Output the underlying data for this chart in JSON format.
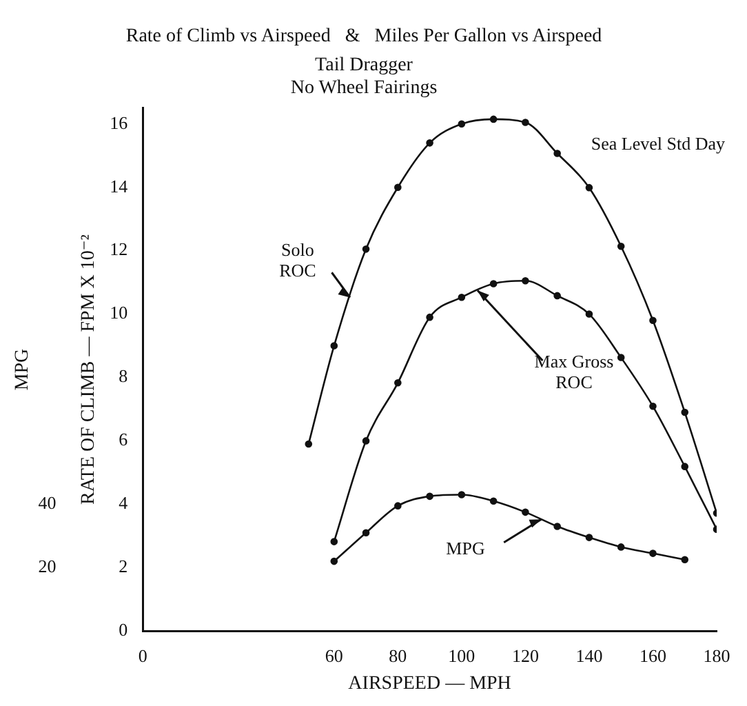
{
  "chart_data": {
    "type": "line",
    "title": "Rate of Climb vs Airspeed   &   Miles Per Gallon vs Airspeed",
    "subtitle": "Tail Dragger\nNo Wheel Fairings",
    "xlabel": "AIRSPEED — MPH",
    "ylabel": "RATE OF CLIMB — FPM X 10⁻²",
    "y2label": "MPG",
    "xlim": [
      0,
      180
    ],
    "xticks": [
      0,
      60,
      80,
      100,
      120,
      140,
      160,
      180
    ],
    "ylim": [
      0,
      16.5
    ],
    "yticks": [
      0,
      2,
      4,
      6,
      8,
      10,
      12,
      14,
      16
    ],
    "y2lim": [
      0,
      165
    ],
    "y2ticks": [
      20,
      40
    ],
    "grid": false,
    "legend": false,
    "marker": "circle",
    "line_style": "solid",
    "series": [
      {
        "name": "Solo ROC",
        "color": "#111111",
        "x": [
          52,
          60,
          70,
          80,
          90,
          100,
          110,
          120,
          130,
          140,
          150,
          160,
          170,
          180
        ],
        "values": [
          5.9,
          9.0,
          12.05,
          14.0,
          15.4,
          16.0,
          16.15,
          16.05,
          15.07,
          13.99,
          12.14,
          9.8,
          6.9,
          3.72
        ]
      },
      {
        "name": "Max Gross ROC",
        "color": "#111111",
        "x": [
          60,
          70,
          80,
          90,
          100,
          110,
          120,
          130,
          140,
          150,
          160,
          170,
          180
        ],
        "values": [
          2.82,
          6.0,
          7.83,
          9.9,
          10.53,
          10.96,
          11.05,
          10.58,
          10.0,
          8.63,
          7.09,
          5.19,
          3.21
        ]
      },
      {
        "name": "MPG",
        "color": "#111111",
        "axis": "y2",
        "x": [
          60,
          70,
          80,
          90,
          100,
          110,
          120,
          130,
          140,
          150,
          160,
          170
        ],
        "values": [
          22,
          31,
          39.5,
          42.5,
          43,
          41,
          37.5,
          33,
          29.5,
          26.5,
          24.5,
          22.5
        ]
      }
    ],
    "annotations": [
      "Sea Level Std Day"
    ]
  }
}
